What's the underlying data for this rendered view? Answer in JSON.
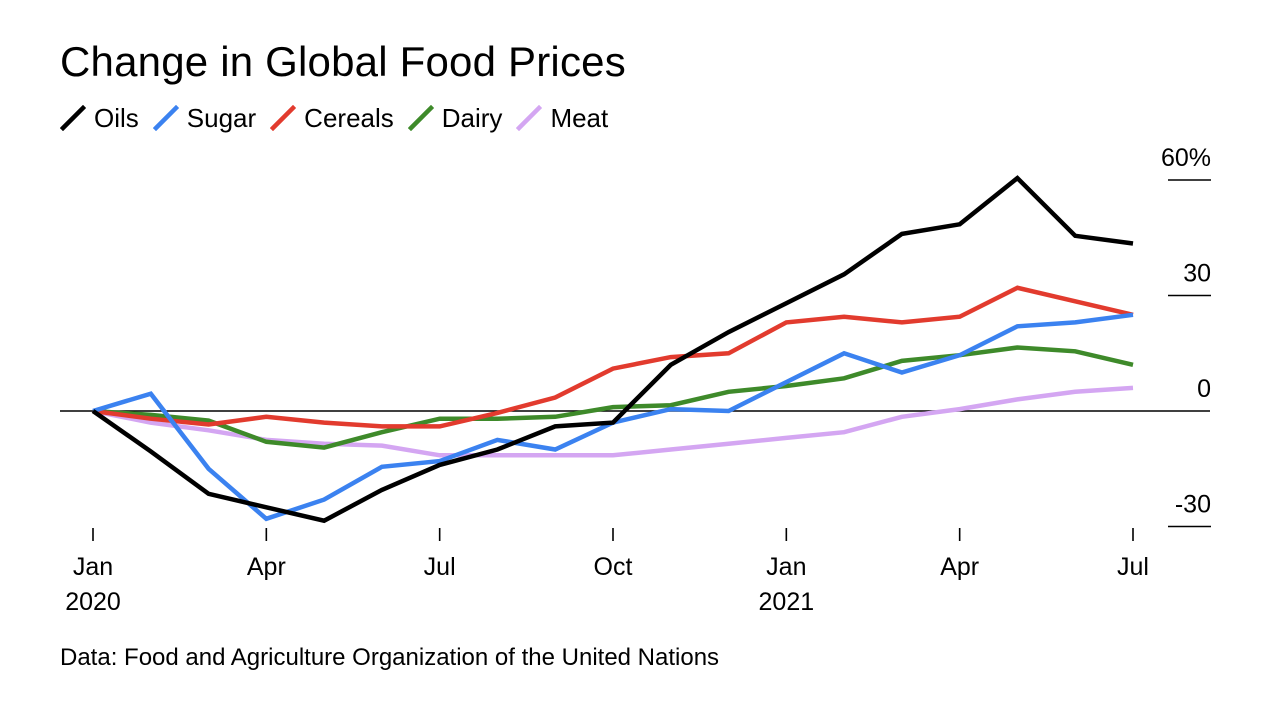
{
  "title": "Change in Global Food Prices",
  "source": "Data: Food and Agriculture Organization of the United Nations",
  "chart_data": {
    "type": "line",
    "title": "Change in Global Food Prices",
    "xlabel": "",
    "ylabel": "",
    "x": [
      "2020-01",
      "2020-02",
      "2020-03",
      "2020-04",
      "2020-05",
      "2020-06",
      "2020-07",
      "2020-08",
      "2020-09",
      "2020-10",
      "2020-11",
      "2020-12",
      "2021-01",
      "2021-02",
      "2021-03",
      "2021-04",
      "2021-05",
      "2021-06",
      "2021-07"
    ],
    "x_ticks": [
      {
        "index": 0,
        "label": "Jan",
        "sublabel": "2020"
      },
      {
        "index": 3,
        "label": "Apr",
        "sublabel": ""
      },
      {
        "index": 6,
        "label": "Jul",
        "sublabel": ""
      },
      {
        "index": 9,
        "label": "Oct",
        "sublabel": ""
      },
      {
        "index": 12,
        "label": "Jan",
        "sublabel": "2021"
      },
      {
        "index": 15,
        "label": "Apr",
        "sublabel": ""
      },
      {
        "index": 18,
        "label": "Jul",
        "sublabel": ""
      }
    ],
    "y_ticks": [
      {
        "value": 60,
        "label": "60%"
      },
      {
        "value": 30,
        "label": "30"
      },
      {
        "value": 0,
        "label": "0"
      },
      {
        "value": -30,
        "label": "-30"
      }
    ],
    "ylim": [
      -34,
      64
    ],
    "grid": false,
    "legend_position": "top-left",
    "series": [
      {
        "name": "Oils",
        "color": "#000000",
        "values": [
          0,
          -10.5,
          -21.5,
          -25,
          -28.5,
          -20.5,
          -14,
          -10,
          -4,
          -3,
          12,
          20.5,
          28,
          35.5,
          46,
          48.5,
          60.5,
          45.5,
          43.5
        ]
      },
      {
        "name": "Sugar",
        "color": "#3b82f0",
        "values": [
          0,
          4.5,
          -15,
          -28,
          -23,
          -14.5,
          -13,
          -7.5,
          -10,
          -3,
          0.5,
          0,
          7.5,
          15,
          10,
          14.5,
          22,
          23,
          25
        ]
      },
      {
        "name": "Cereals",
        "color": "#e23b2e",
        "values": [
          0,
          -2,
          -3.5,
          -1.5,
          -3,
          -4,
          -4,
          -0.5,
          3.5,
          11,
          14,
          15,
          23,
          24.5,
          23,
          24.5,
          32,
          28.5,
          25
        ]
      },
      {
        "name": "Dairy",
        "color": "#3e8a2a",
        "values": [
          0,
          -1,
          -2.5,
          -8,
          -9.5,
          -5.5,
          -2,
          -2,
          -1.5,
          1,
          1.5,
          5,
          6.5,
          8.5,
          13,
          14.5,
          16.5,
          15.5,
          12
        ]
      },
      {
        "name": "Meat",
        "color": "#d4a6f2",
        "values": [
          0,
          -3,
          -5,
          -7.5,
          -8.5,
          -9,
          -11.5,
          -11.5,
          -11.5,
          -11.5,
          -10,
          -8.5,
          -7,
          -5.5,
          -1.5,
          0.5,
          3,
          5,
          6
        ]
      }
    ]
  }
}
